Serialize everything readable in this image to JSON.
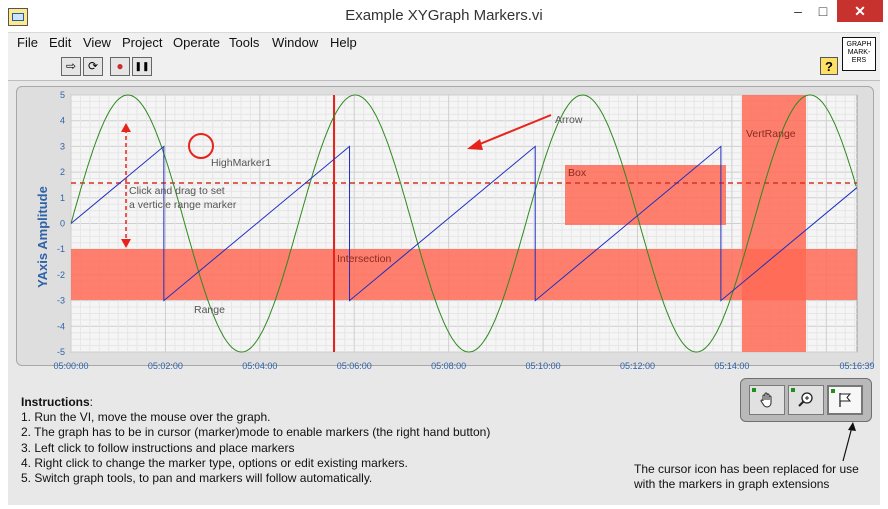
{
  "window": {
    "title": "Example XYGraph Markers.vi",
    "min": "–",
    "max": "□",
    "close": "✕"
  },
  "menu": [
    "File",
    "Edit",
    "View",
    "Project",
    "Operate",
    "Tools",
    "Window",
    "Help"
  ],
  "toolbar": {
    "run": "⇨",
    "run_continuous": "⟳",
    "abort": "●",
    "pause": "❚❚",
    "help": "?"
  },
  "vi_icon": {
    "line1": "GRAPH",
    "line2": "MARK-",
    "line3": "ERS"
  },
  "graph": {
    "ylabel": "YAxis Amplitude",
    "ylim": [
      -5,
      5
    ],
    "yticks": [
      "5",
      "4",
      "3",
      "2",
      "1",
      "0",
      "-1",
      "-2",
      "-3",
      "-4",
      "-5"
    ],
    "xticks": [
      "05:00:00",
      "05:02:00",
      "05:04:00",
      "05:06:00",
      "05:08:00",
      "05:10:00",
      "05:12:00",
      "05:14:00",
      "05:16:39"
    ],
    "xlim_seconds": [
      0,
      999
    ],
    "series": [
      {
        "type": "sine",
        "amplitude": 5,
        "period_seconds": 289,
        "color": "#2d8a1e"
      },
      {
        "type": "sawtooth",
        "min": -3,
        "max": 3,
        "period_seconds": 236,
        "color": "#1f2fc0"
      }
    ],
    "markers": {
      "high_marker_label": "HighMarker1",
      "range_label": "Range",
      "arrow_label": "Arrow",
      "box_label": "Box",
      "vertrange_label": "VertRange",
      "intersection_label": "Intersection",
      "drag_note_line1": "Click and drag to set",
      "drag_note_line2": "a verticle range marker"
    },
    "colors": {
      "marker": "#ff6a55",
      "marker_line": "#e8231c",
      "plot_bg": "#f5f5f5",
      "grid": "#dcdcdc"
    }
  },
  "instructions": {
    "heading": "Instructions",
    "lines": [
      "1. Run the VI, move the mouse over the graph.",
      "2. The graph has to be in cursor (marker)mode to enable markers (the right hand button)",
      "3. Left click to follow instructions and place markers",
      "4. Right click to change the marker type, options or edit existing markers.",
      "5. Switch graph tools, to pan and markers will follow automatically."
    ]
  },
  "palette": {
    "pan": "hand-icon",
    "zoom": "zoom-icon",
    "cursor": "flag-icon"
  },
  "note": {
    "line1": "The cursor icon has been replaced for use",
    "line2": "with the markers in graph extensions"
  }
}
